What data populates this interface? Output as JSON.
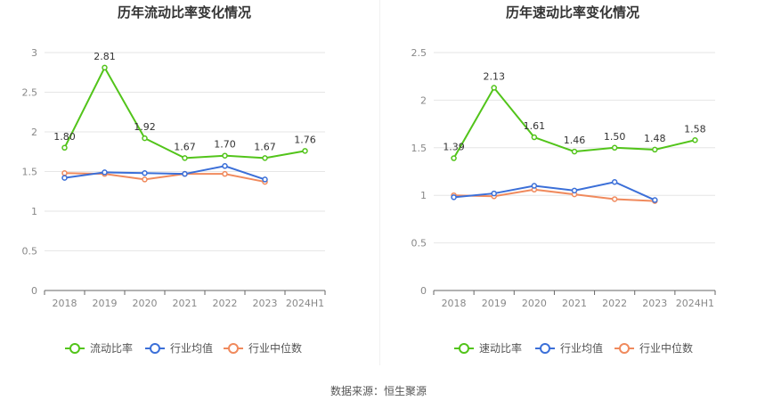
{
  "footer": {
    "source": "数据来源：恒生聚源"
  },
  "colors": {
    "primary": "#52c41a",
    "avg": "#3b6fd8",
    "median": "#f08a5d"
  },
  "chart_data": [
    {
      "type": "line",
      "title": "历年流动比率变化情况",
      "categories": [
        "2018",
        "2019",
        "2020",
        "2021",
        "2022",
        "2023",
        "2024H1"
      ],
      "ylim": [
        0,
        3
      ],
      "yticks": [
        0,
        0.5,
        1,
        1.5,
        2,
        2.5,
        3
      ],
      "ytick_labels": [
        "0",
        "0.5",
        "1",
        "1.5",
        "2",
        "2.5",
        "3"
      ],
      "series": [
        {
          "name": "流动比率",
          "values": [
            1.8,
            2.81,
            1.92,
            1.67,
            1.7,
            1.67,
            1.76
          ],
          "labels": [
            "1.80",
            "2.81",
            "1.92",
            "1.67",
            "1.70",
            "1.67",
            "1.76"
          ]
        },
        {
          "name": "行业均值",
          "values": [
            1.42,
            1.49,
            1.48,
            1.47,
            1.57,
            1.4,
            null
          ]
        },
        {
          "name": "行业中位数",
          "values": [
            1.48,
            1.47,
            1.4,
            1.47,
            1.47,
            1.37,
            null
          ]
        }
      ],
      "legend": "bottom"
    },
    {
      "type": "line",
      "title": "历年速动比率变化情况",
      "categories": [
        "2018",
        "2019",
        "2020",
        "2021",
        "2022",
        "2023",
        "2024H1"
      ],
      "ylim": [
        0,
        2.5
      ],
      "yticks": [
        0,
        0.5,
        1,
        1.5,
        2,
        2.5
      ],
      "ytick_labels": [
        "0",
        "0.5",
        "1",
        "1.5",
        "2",
        "2.5"
      ],
      "series": [
        {
          "name": "速动比率",
          "values": [
            1.39,
            2.13,
            1.61,
            1.46,
            1.5,
            1.48,
            1.58
          ],
          "labels": [
            "1.39",
            "2.13",
            "1.61",
            "1.46",
            "1.50",
            "1.48",
            "1.58"
          ]
        },
        {
          "name": "行业均值",
          "values": [
            0.98,
            1.02,
            1.1,
            1.05,
            1.14,
            0.95,
            null
          ]
        },
        {
          "name": "行业中位数",
          "values": [
            1.0,
            0.99,
            1.06,
            1.01,
            0.96,
            0.94,
            null
          ]
        }
      ],
      "legend": "bottom"
    }
  ]
}
